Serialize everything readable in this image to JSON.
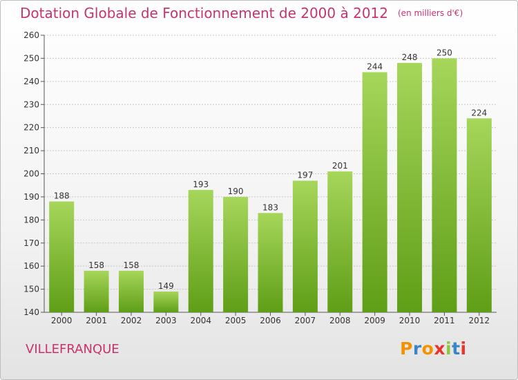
{
  "chart_data": {
    "type": "bar",
    "title": "Dotation Globale de Fonctionnement de 2000 à 2012",
    "unit_note": "(en milliers d'€)",
    "categories": [
      "2000",
      "2001",
      "2002",
      "2003",
      "2004",
      "2005",
      "2006",
      "2007",
      "2008",
      "2009",
      "2010",
      "2011",
      "2012"
    ],
    "values": [
      188,
      158,
      158,
      149,
      193,
      190,
      183,
      197,
      201,
      244,
      248,
      250,
      224
    ],
    "ylim": [
      140,
      260
    ],
    "yticks": [
      140,
      150,
      160,
      170,
      180,
      190,
      200,
      210,
      220,
      230,
      240,
      250,
      260
    ],
    "grid": true,
    "xlabel": "",
    "ylabel": ""
  },
  "place_name": "VILLEFRANQUE",
  "logo_text": "Proxiti",
  "colors": {
    "title": "#c8326e",
    "bar_top": "#a6d65a",
    "bar_bottom": "#5f9e17",
    "grid": "#c8c8c8",
    "axis": "#555555",
    "logo_letters": [
      "#f39200",
      "#3a86c8",
      "#f39200",
      "#e8352c",
      "#8dc63f",
      "#3a86c8",
      "#e8352c"
    ]
  }
}
